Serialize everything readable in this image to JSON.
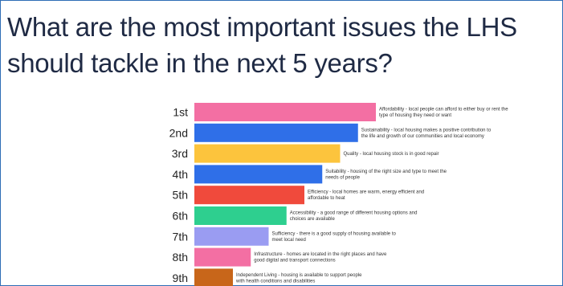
{
  "title": "What are the most important issues the LHS should tackle in the next 5 years?",
  "chart_data": {
    "type": "bar",
    "orientation": "horizontal",
    "title": "What are the most important issues the LHS should tackle in the next 5 years?",
    "categories": [
      "1st",
      "2nd",
      "3rd",
      "4th",
      "5th",
      "6th",
      "7th",
      "8th",
      "9th"
    ],
    "values": [
      9,
      8,
      7,
      6,
      5,
      4,
      3,
      2,
      1
    ],
    "score_scale": [
      0,
      9
    ],
    "colors": [
      "#f36fa3",
      "#2f6fe8",
      "#fcc43d",
      "#2f6fe8",
      "#f04a3c",
      "#2ecf8f",
      "#9a9cf2",
      "#f36fa3",
      "#c8661a"
    ],
    "descriptions": [
      [
        "Affordability - local people can afford to either buy or rent the",
        "type of housing they need or want"
      ],
      [
        "Sustainability - local housing makes a positive contribution to",
        "the life and growth of our communities and local economy"
      ],
      [
        "Quality - local housing stock is in good repair"
      ],
      [
        "Suitability - housing of the right size and type to meet the",
        "needs of people"
      ],
      [
        "Efficiency - local homes are warm, energy efficient and",
        "affordable to heat"
      ],
      [
        "Accessibility - a good range of different housing options and",
        "choices are available"
      ],
      [
        "Sufficiency - there is a good supply of housing available to",
        "meet local need"
      ],
      [
        "Infrastructure - homes are located in the right places and have",
        "good digital and transport connections"
      ],
      [
        "Independent Living - housing is available to support people",
        "with health conditions and disabilities"
      ]
    ],
    "grid": false,
    "legend": "none"
  }
}
